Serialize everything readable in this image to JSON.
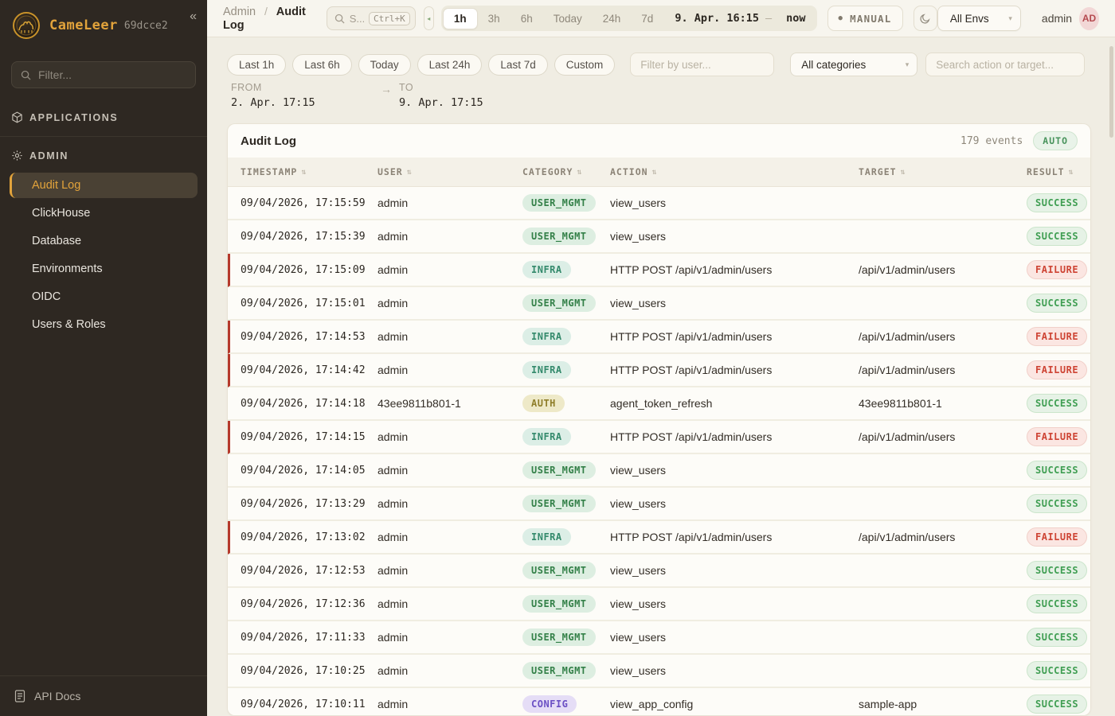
{
  "brand": {
    "name": "CameLeer",
    "build": "69dcce2"
  },
  "icons": {
    "collapse": "«",
    "sort": "⇅",
    "caret": "▾",
    "dot": "●",
    "live": "◂",
    "arrow": "→"
  },
  "sidebar": {
    "filter_placeholder": "Filter...",
    "applications_label": "APPLICATIONS",
    "admin_label": "ADMIN",
    "admin_items": [
      "Audit Log",
      "ClickHouse",
      "Database",
      "Environments",
      "OIDC",
      "Users & Roles"
    ],
    "active_item": "Audit Log",
    "api_docs_label": "API Docs"
  },
  "header": {
    "breadcrumb": {
      "root": "Admin",
      "separator": "/",
      "current": "Audit Log"
    },
    "search": {
      "placeholder": "S...",
      "shortcut": "Ctrl+K"
    },
    "time_ranges": [
      "1h",
      "3h",
      "6h",
      "Today",
      "24h",
      "7d"
    ],
    "active_range": "1h",
    "range_start": "9. Apr. 16:15",
    "range_separator": "–",
    "range_end": "now",
    "manual_button": "MANUAL",
    "env_select": "All Envs",
    "user_name": "admin",
    "avatar_initials": "AD"
  },
  "filters": {
    "chips": [
      "Last 1h",
      "Last 6h",
      "Today",
      "Last 24h",
      "Last 7d",
      "Custom"
    ],
    "user_placeholder": "Filter by user...",
    "category_select": "All categories",
    "search_placeholder": "Search action or target...",
    "from_label": "FROM",
    "from_value": "2. Apr. 17:15",
    "to_label": "TO",
    "to_value": "9. Apr. 17:15"
  },
  "table": {
    "title": "Audit Log",
    "events_count": "179 events",
    "auto_badge": "AUTO",
    "columns": [
      "TIMESTAMP",
      "USER",
      "CATEGORY",
      "ACTION",
      "TARGET",
      "RESULT"
    ],
    "rows": [
      {
        "timestamp": "09/04/2026, 17:15:59",
        "user": "admin",
        "category": "USER_MGMT",
        "action": "view_users",
        "target": "",
        "result": "SUCCESS"
      },
      {
        "timestamp": "09/04/2026, 17:15:39",
        "user": "admin",
        "category": "USER_MGMT",
        "action": "view_users",
        "target": "",
        "result": "SUCCESS"
      },
      {
        "timestamp": "09/04/2026, 17:15:09",
        "user": "admin",
        "category": "INFRA",
        "action": "HTTP POST /api/v1/admin/users",
        "target": "/api/v1/admin/users",
        "result": "FAILURE"
      },
      {
        "timestamp": "09/04/2026, 17:15:01",
        "user": "admin",
        "category": "USER_MGMT",
        "action": "view_users",
        "target": "",
        "result": "SUCCESS"
      },
      {
        "timestamp": "09/04/2026, 17:14:53",
        "user": "admin",
        "category": "INFRA",
        "action": "HTTP POST /api/v1/admin/users",
        "target": "/api/v1/admin/users",
        "result": "FAILURE"
      },
      {
        "timestamp": "09/04/2026, 17:14:42",
        "user": "admin",
        "category": "INFRA",
        "action": "HTTP POST /api/v1/admin/users",
        "target": "/api/v1/admin/users",
        "result": "FAILURE"
      },
      {
        "timestamp": "09/04/2026, 17:14:18",
        "user": "43ee9811b801-1",
        "category": "AUTH",
        "action": "agent_token_refresh",
        "target": "43ee9811b801-1",
        "result": "SUCCESS"
      },
      {
        "timestamp": "09/04/2026, 17:14:15",
        "user": "admin",
        "category": "INFRA",
        "action": "HTTP POST /api/v1/admin/users",
        "target": "/api/v1/admin/users",
        "result": "FAILURE"
      },
      {
        "timestamp": "09/04/2026, 17:14:05",
        "user": "admin",
        "category": "USER_MGMT",
        "action": "view_users",
        "target": "",
        "result": "SUCCESS"
      },
      {
        "timestamp": "09/04/2026, 17:13:29",
        "user": "admin",
        "category": "USER_MGMT",
        "action": "view_users",
        "target": "",
        "result": "SUCCESS"
      },
      {
        "timestamp": "09/04/2026, 17:13:02",
        "user": "admin",
        "category": "INFRA",
        "action": "HTTP POST /api/v1/admin/users",
        "target": "/api/v1/admin/users",
        "result": "FAILURE"
      },
      {
        "timestamp": "09/04/2026, 17:12:53",
        "user": "admin",
        "category": "USER_MGMT",
        "action": "view_users",
        "target": "",
        "result": "SUCCESS"
      },
      {
        "timestamp": "09/04/2026, 17:12:36",
        "user": "admin",
        "category": "USER_MGMT",
        "action": "view_users",
        "target": "",
        "result": "SUCCESS"
      },
      {
        "timestamp": "09/04/2026, 17:11:33",
        "user": "admin",
        "category": "USER_MGMT",
        "action": "view_users",
        "target": "",
        "result": "SUCCESS"
      },
      {
        "timestamp": "09/04/2026, 17:10:25",
        "user": "admin",
        "category": "USER_MGMT",
        "action": "view_users",
        "target": "",
        "result": "SUCCESS"
      },
      {
        "timestamp": "09/04/2026, 17:10:11",
        "user": "admin",
        "category": "CONFIG",
        "action": "view_app_config",
        "target": "sample-app",
        "result": "SUCCESS"
      }
    ]
  },
  "colors": {
    "accent": "#e2a33b",
    "sidebar_bg": "#2e2822",
    "success_text": "#3f9e52",
    "success_bg": "#e6f2e6",
    "failure_text": "#ce4434",
    "failure_bg": "#fbe6e2",
    "failure_border": "#b5392c",
    "cat_user_mgmt_text": "#338048",
    "cat_user_mgmt_bg": "#ddeee1",
    "cat_infra_text": "#348a6c",
    "cat_infra_bg": "#dceee6",
    "cat_auth_text": "#8f7e2a",
    "cat_auth_bg": "#eee9c8",
    "cat_config_text": "#6b50c4",
    "cat_config_bg": "#e5ddf6",
    "avatar_bg": "#f2d7d6",
    "avatar_text": "#b4494e"
  }
}
